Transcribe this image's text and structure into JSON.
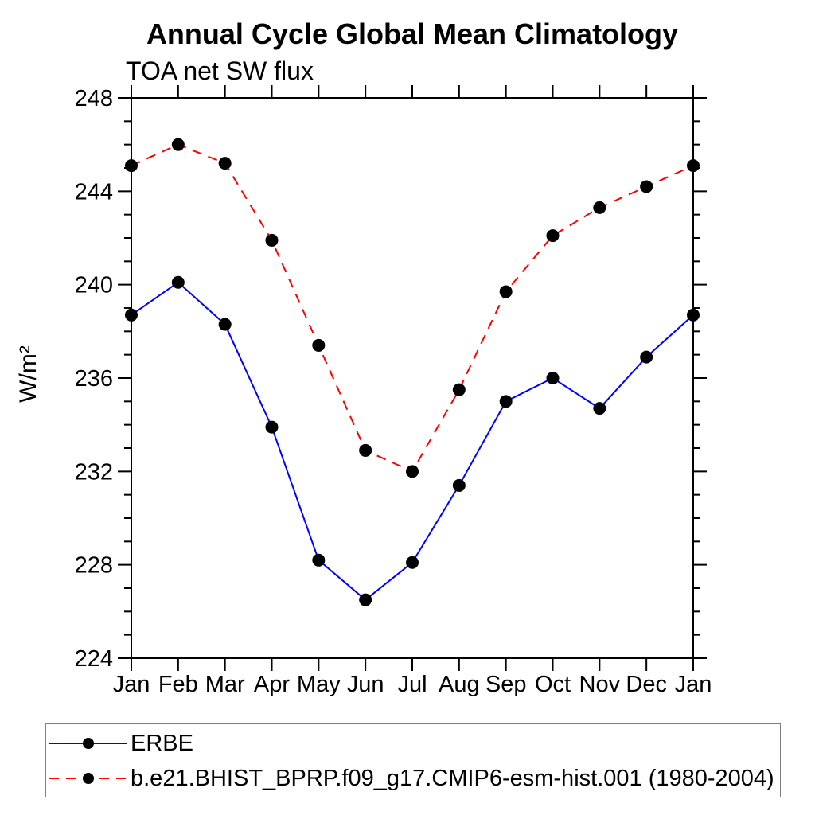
{
  "page": {
    "background": "#ffffff"
  },
  "chart_data": {
    "type": "line",
    "title": "Annual Cycle Global Mean Climatology",
    "subtitle": "TOA net SW flux",
    "ylabel": "W/m²",
    "xlabel": "",
    "categories": [
      "Jan",
      "Feb",
      "Mar",
      "Apr",
      "May",
      "Jun",
      "Jul",
      "Aug",
      "Sep",
      "Oct",
      "Nov",
      "Dec",
      "Jan"
    ],
    "ylim": [
      224,
      248
    ],
    "y_major_tick_step": 4,
    "y_minor_tick_step": 1,
    "y_tick_labels": [
      "224",
      "228",
      "232",
      "236",
      "240",
      "244",
      "248"
    ],
    "grid": "off",
    "legend_position": "bottom-box",
    "axis_color": "#000000",
    "legend_border_color": "#7f7f7f",
    "marker": {
      "shape": "circle",
      "color": "#000000"
    },
    "series": [
      {
        "name": "ERBE",
        "color": "#0000ff",
        "line_style": "solid",
        "values": [
          238.7,
          240.1,
          238.3,
          233.9,
          228.2,
          226.5,
          228.1,
          231.4,
          235.0,
          236.0,
          234.7,
          236.9,
          238.7
        ]
      },
      {
        "name": "b.e21.BHIST_BPRP.f09_g17.CMIP6-esm-hist.001 (1980-2004)",
        "color": "#ff0000",
        "line_style": "dashed",
        "values": [
          245.1,
          246.0,
          245.2,
          241.9,
          237.4,
          232.9,
          232.0,
          235.5,
          239.7,
          242.1,
          243.3,
          244.2,
          245.1
        ]
      }
    ]
  }
}
